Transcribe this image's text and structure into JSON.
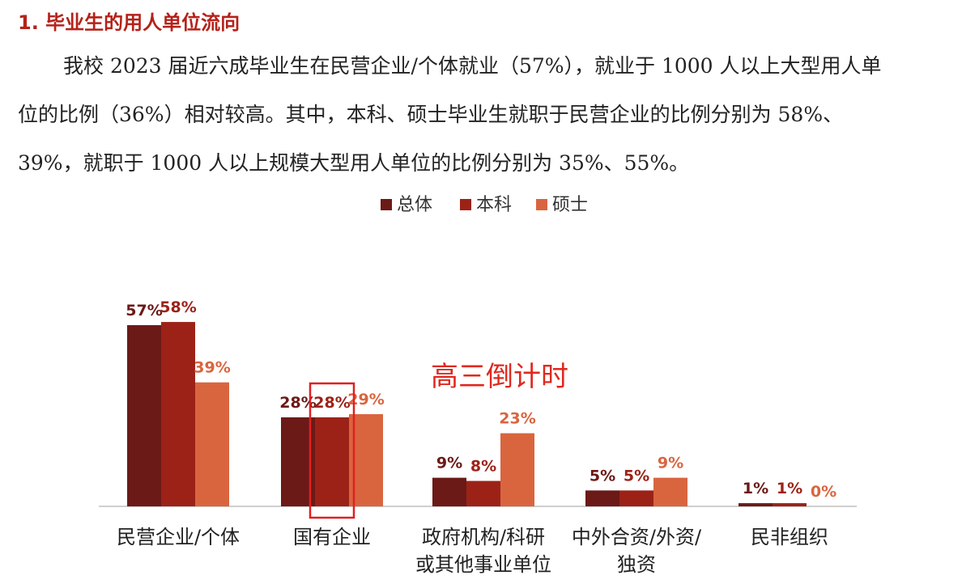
{
  "heading": "1. 毕业生的用人单位流向",
  "paragraph": {
    "line1": "我校 2023 届近六成毕业生在民营企业/个体就业（57%），就业于 1000 人以上大型用人单",
    "line2": "位的比例（36%）相对较高。其中，本科、硕士毕业生就职于民营企业的比例分别为 58%、",
    "line3": "39%，就职于 1000 人以上规模大型用人单位的比例分别为 35%、55%。"
  },
  "watermark": "高三倒计时",
  "colors": {
    "总体": "#6b1a17",
    "本科": "#9c2218",
    "硕士": "#d9653f",
    "heading": "#b5221a",
    "highlight_box": "#e02020"
  },
  "chart_data": {
    "type": "bar",
    "categories": [
      [
        "民营企业/个体"
      ],
      [
        "国有企业"
      ],
      [
        "政府机构/科研",
        "或其他事业单位"
      ],
      [
        "中外合资/外资/",
        "独资"
      ],
      [
        "民非组织"
      ]
    ],
    "series": [
      {
        "name": "总体",
        "values": [
          57,
          28,
          9,
          5,
          1
        ],
        "labels": [
          "57%",
          "28%",
          "9%",
          "5%",
          "1%"
        ]
      },
      {
        "name": "本科",
        "values": [
          58,
          28,
          8,
          5,
          1
        ],
        "labels": [
          "58%",
          "28%",
          "8%",
          "5%",
          "1%"
        ]
      },
      {
        "name": "硕士",
        "values": [
          39,
          29,
          23,
          9,
          0
        ],
        "labels": [
          "39%",
          "29%",
          "23%",
          "9%",
          "0%"
        ]
      }
    ],
    "ylim": [
      0,
      60
    ],
    "grid": false,
    "legend_position": "top-center",
    "highlight": {
      "category_index": 1,
      "series_index": 1
    }
  }
}
